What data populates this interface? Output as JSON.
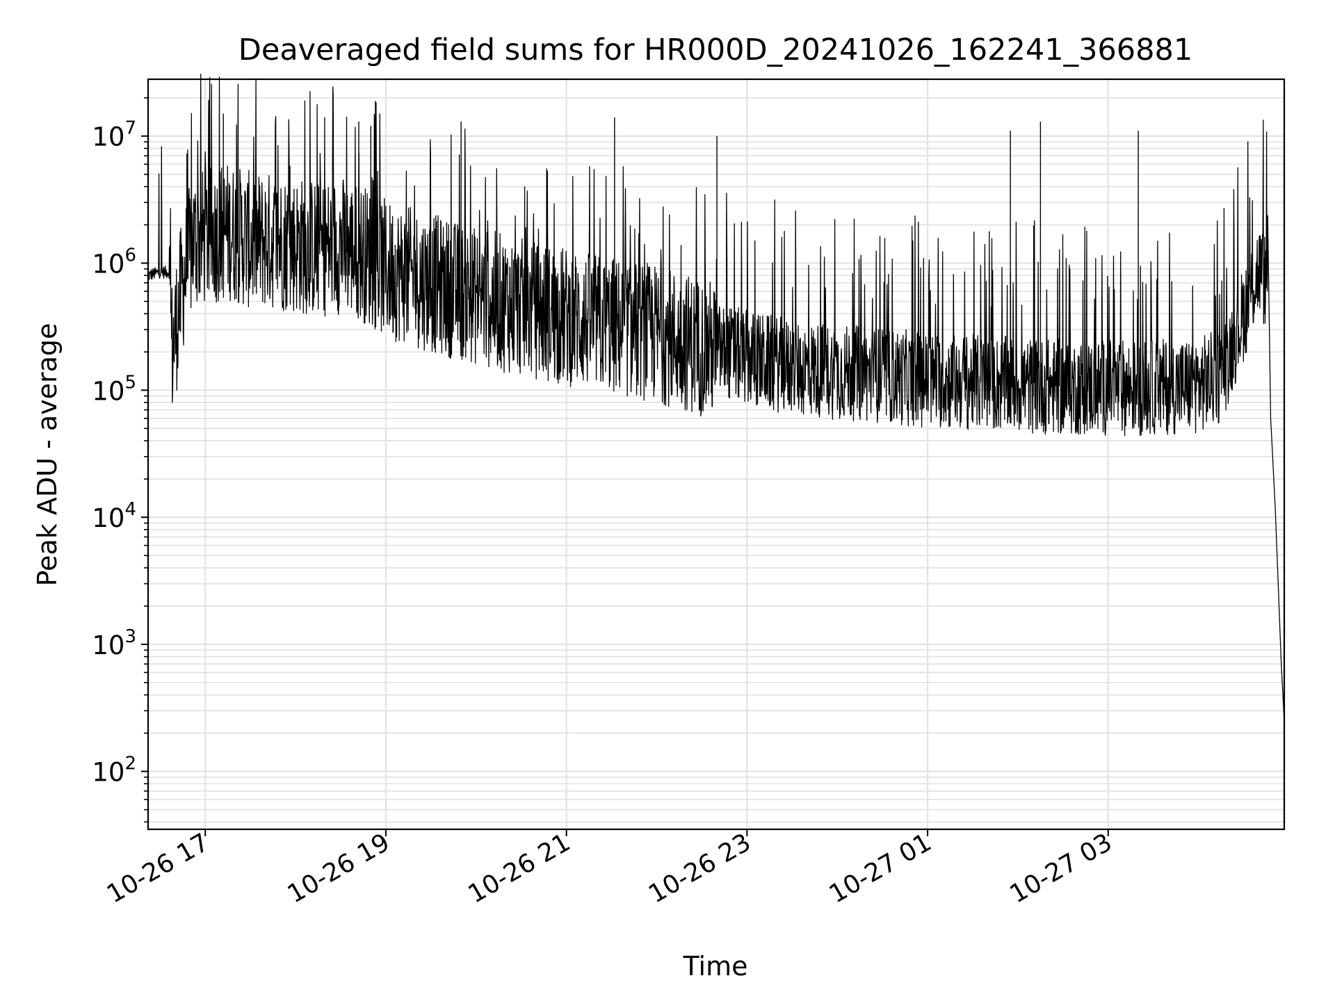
{
  "chart_data": {
    "type": "line",
    "title": "Deaveraged field sums for HR000D_20241026_162241_366881",
    "xlabel": "Time",
    "ylabel": "Peak ADU - average",
    "yscale": "log",
    "ylim": [
      35,
      28000000
    ],
    "xlim": [
      "2024-10-26 16:22",
      "2024-10-27 04:57"
    ],
    "x_ticks": [
      {
        "time": "2024-10-26 17:00",
        "label": "10-26 17"
      },
      {
        "time": "2024-10-26 19:00",
        "label": "10-26 19"
      },
      {
        "time": "2024-10-26 21:00",
        "label": "10-26 21"
      },
      {
        "time": "2024-10-26 23:00",
        "label": "10-26 23"
      },
      {
        "time": "2024-10-27 01:00",
        "label": "10-27 01"
      },
      {
        "time": "2024-10-27 03:00",
        "label": "10-27 03"
      }
    ],
    "y_ticks": [
      {
        "value": 100,
        "base": "10",
        "exp": "2"
      },
      {
        "value": 1000,
        "base": "10",
        "exp": "3"
      },
      {
        "value": 10000,
        "base": "10",
        "exp": "4"
      },
      {
        "value": 100000,
        "base": "10",
        "exp": "5"
      },
      {
        "value": 1000000,
        "base": "10",
        "exp": "6"
      },
      {
        "value": 10000000,
        "base": "10",
        "exp": "7"
      }
    ],
    "grid": true,
    "line_color": "#000000",
    "series": [
      {
        "x": [
          "2024-10-26 16:22",
          "2024-10-26 16:30",
          "2024-10-26 16:36",
          "2024-10-26 16:38",
          "2024-10-26 16:45",
          "2024-10-26 16:52",
          "2024-10-26 17:00",
          "2024-10-26 17:15",
          "2024-10-26 17:30",
          "2024-10-26 17:45",
          "2024-10-26 18:00",
          "2024-10-26 18:15",
          "2024-10-26 18:30",
          "2024-10-26 18:45",
          "2024-10-26 19:00",
          "2024-10-26 19:30",
          "2024-10-26 20:00",
          "2024-10-26 20:30",
          "2024-10-26 21:00",
          "2024-10-26 21:30",
          "2024-10-26 22:00",
          "2024-10-26 22:30",
          "2024-10-26 23:00",
          "2024-10-26 23:30",
          "2024-10-27 00:00",
          "2024-10-27 00:30",
          "2024-10-27 01:00",
          "2024-10-27 01:30",
          "2024-10-27 02:00",
          "2024-10-27 02:30",
          "2024-10-27 03:00",
          "2024-10-27 03:30",
          "2024-10-27 04:00",
          "2024-10-27 04:15",
          "2024-10-27 04:30",
          "2024-10-27 04:40",
          "2024-10-27 04:45",
          "2024-10-27 04:48",
          "2024-10-27 04:51",
          "2024-10-27 04:53",
          "2024-10-27 04:55",
          "2024-10-27 04:57"
        ],
        "y": [
          800000,
          850000,
          850000,
          200000,
          700000,
          1500000,
          1600000,
          1800000,
          1500000,
          1500000,
          1400000,
          1300000,
          1400000,
          1200000,
          900000,
          700000,
          550000,
          450000,
          380000,
          320000,
          280000,
          220000,
          180000,
          150000,
          140000,
          130000,
          120000,
          115000,
          110000,
          105000,
          105000,
          105000,
          110000,
          130000,
          400000,
          900000,
          700000,
          60000,
          12000,
          3000,
          700,
          250
        ]
      }
    ],
    "spikes": [
      {
        "x": "2024-10-26 17:12",
        "y": 15000000
      },
      {
        "x": "2024-10-26 18:42",
        "y": 13000000
      },
      {
        "x": "2024-10-26 18:50",
        "y": 12000000
      },
      {
        "x": "2024-10-26 19:50",
        "y": 13000000
      },
      {
        "x": "2024-10-26 21:32",
        "y": 14000000
      },
      {
        "x": "2024-10-26 22:40",
        "y": 10000000
      },
      {
        "x": "2024-10-27 01:55",
        "y": 11000000
      },
      {
        "x": "2024-10-27 02:15",
        "y": 13000000
      },
      {
        "x": "2024-10-27 03:20",
        "y": 11000000
      }
    ]
  }
}
